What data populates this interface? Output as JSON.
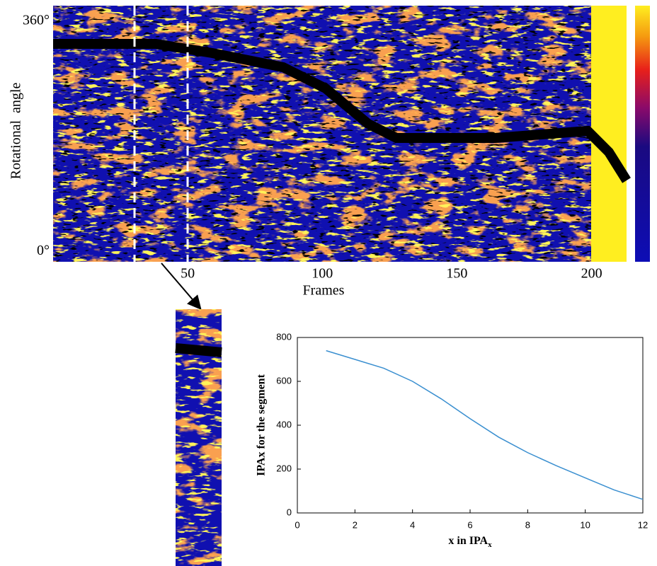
{
  "chart_data": [
    {
      "type": "heatmap",
      "xlabel": "Frames",
      "ylabel": "Rotational  angle",
      "xlim": [
        0,
        213
      ],
      "xticks": [
        50,
        100,
        150,
        200
      ],
      "ylim": [
        -16,
        384
      ],
      "yticks": [
        {
          "value": 0,
          "label": "0°"
        },
        {
          "value": 360,
          "label": "360°"
        }
      ]
    },
    {
      "type": "line",
      "xlabel": "x in IPA",
      "xlabel_subscript": "x",
      "ylabel": "IPAx for the segment",
      "x": [
        1,
        2,
        3,
        4,
        5,
        6,
        7,
        8,
        9,
        10,
        11,
        12
      ],
      "series": [
        {
          "color": "#3a8fd0",
          "values": [
            740,
            700,
            660,
            600,
            520,
            430,
            345,
            275,
            215,
            160,
            105,
            62
          ]
        }
      ],
      "xlim": [
        0,
        12
      ],
      "xticks": [
        0,
        2,
        4,
        6,
        8,
        10,
        12
      ],
      "ylim": [
        0,
        800
      ],
      "yticks": [
        0,
        200,
        400,
        600,
        800
      ]
    }
  ]
}
